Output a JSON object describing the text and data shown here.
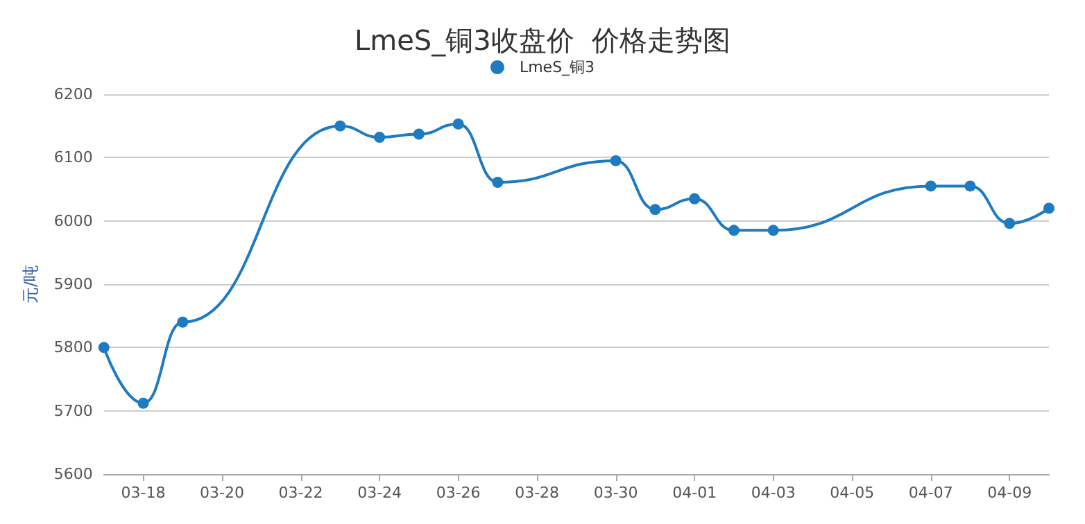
{
  "chart_data": {
    "type": "line",
    "title": "LmeS_铜3收盘价  价格走势图",
    "ylabel": "元/吨",
    "x": [
      "--03-17",
      "--03-18",
      "--03-19",
      "--03-23",
      "--03-24",
      "--03-25",
      "--03-26",
      "--03-27",
      "--03-30",
      "--03-31",
      "--04-01",
      "--04-02",
      "--04-03",
      "--04-07",
      "--04-08",
      "--04-09",
      "--04-10"
    ],
    "series": [
      {
        "name": "LmeS_铜3",
        "color": "#1f7bc1",
        "values": [
          5800,
          5712,
          5840,
          6150,
          6132,
          6137,
          6153,
          6061,
          6095,
          6018,
          6035,
          5985,
          5985,
          6055,
          6055,
          5996,
          6020
        ]
      }
    ],
    "xlim": [
      "--03-17",
      "--04-10"
    ],
    "xticks": [
      {
        "value": "--03-18",
        "label": "03-18"
      },
      {
        "value": "--03-20",
        "label": "03-20"
      },
      {
        "value": "--03-22",
        "label": "03-22"
      },
      {
        "value": "--03-24",
        "label": "03-24"
      },
      {
        "value": "--03-26",
        "label": "03-26"
      },
      {
        "value": "--03-28",
        "label": "03-28"
      },
      {
        "value": "--03-30",
        "label": "03-30"
      },
      {
        "value": "--04-01",
        "label": "04-01"
      },
      {
        "value": "--04-03",
        "label": "04-03"
      },
      {
        "value": "--04-05",
        "label": "04-05"
      },
      {
        "value": "--04-07",
        "label": "04-07"
      },
      {
        "value": "--04-09",
        "label": "04-09"
      }
    ],
    "ylim": [
      5600,
      6200
    ],
    "yticks": [
      5600,
      5700,
      5800,
      5900,
      6000,
      6100,
      6200
    ],
    "grid": "y",
    "legend": "top",
    "marker": "circle",
    "line_style": "solid"
  }
}
